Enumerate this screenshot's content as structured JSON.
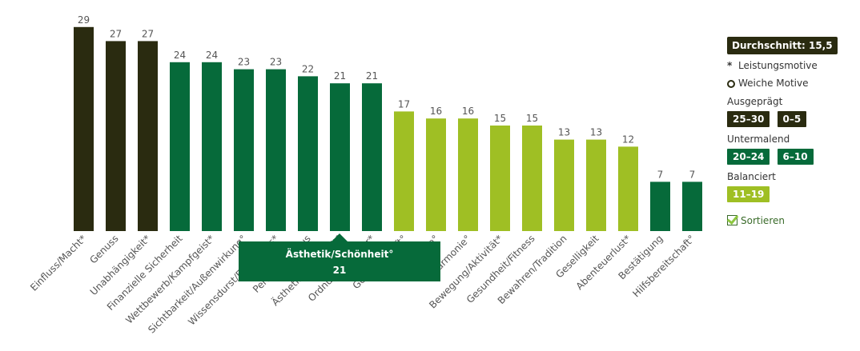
{
  "chart_data": {
    "type": "bar",
    "categories": [
      "Einfluss/Macht*",
      "Genuss",
      "Unabhängigkeit*",
      "Finanzielle Sicherheit",
      "Wettbewerb/Kampfgeist*",
      "Sichtbarkeit/Außenwirkung°",
      "Wissensdurst/Erkenntnis*",
      "Perfektionismus",
      "Ästhetik/Schönheit°",
      "Ordnung/Struktur*",
      "Gemeinschaft°",
      "Fürsorge°",
      "Harmonie°",
      "Bewegung/Aktivität*",
      "Gesundheit/Fitness",
      "Bewahren/Tradition",
      "Geselligkeit",
      "Abenteuerlust*",
      "Bestätigung",
      "Hilfsbereitschaft°"
    ],
    "values": [
      29,
      27,
      27,
      24,
      24,
      23,
      23,
      22,
      21,
      21,
      17,
      16,
      16,
      15,
      15,
      13,
      13,
      12,
      7,
      7
    ],
    "bar_groups": [
      "ausgepraegt",
      "ausgepraegt",
      "ausgepraegt",
      "untermalend",
      "untermalend",
      "untermalend",
      "untermalend",
      "untermalend",
      "untermalend",
      "untermalend",
      "balanciert",
      "balanciert",
      "balanciert",
      "balanciert",
      "balanciert",
      "balanciert",
      "balanciert",
      "balanciert",
      "untermalend",
      "untermalend"
    ],
    "colors": {
      "ausgepraegt": "#2a2b10",
      "untermalend": "#066a3a",
      "balanciert": "#9fbf24"
    },
    "ylim": [
      0,
      30
    ],
    "title": "",
    "xlabel": "",
    "ylabel": "",
    "legend_position": "right"
  },
  "side": {
    "average": "Durchschnitt: 15,5",
    "legend_perf": "Leistungsmotive",
    "legend_soft": "Weiche Motive",
    "groups": [
      {
        "title": "Ausgeprägt",
        "chips": [
          "25–30",
          "0–5"
        ],
        "color": "#2a2b10"
      },
      {
        "title": "Untermalend",
        "chips": [
          "20–24",
          "6–10"
        ],
        "color": "#066a3a"
      },
      {
        "title": "Balanciert",
        "chips": [
          "11–19"
        ],
        "color": "#9fbf24"
      }
    ],
    "sort_label": "Sortieren"
  },
  "tooltip": {
    "label": "Ästhetik/Schönheit°",
    "value": "21"
  }
}
